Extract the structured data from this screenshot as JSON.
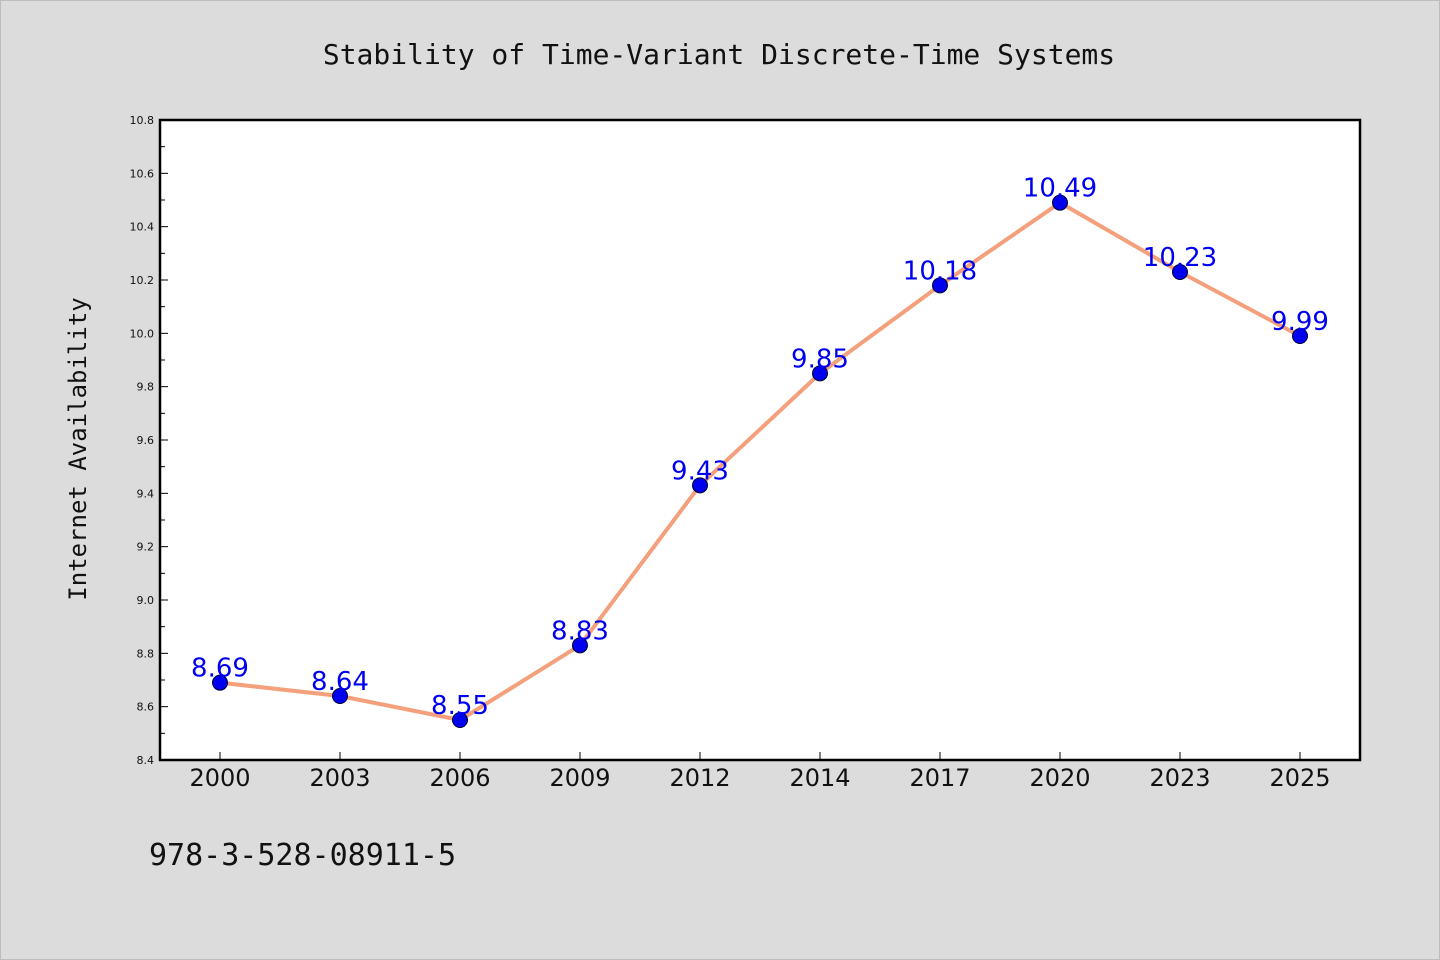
{
  "chart_data": {
    "type": "line",
    "title": "Stability of Time-Variant Discrete-Time Systems",
    "xlabel": "",
    "ylabel": "Internet Availability",
    "categories": [
      "2000",
      "2003",
      "2006",
      "2009",
      "2012",
      "2014",
      "2017",
      "2020",
      "2023",
      "2025"
    ],
    "series": [
      {
        "values": [
          8.69,
          8.64,
          8.55,
          8.83,
          9.43,
          9.85,
          10.18,
          10.49,
          10.23,
          9.99
        ],
        "line_color": "#f4a07c",
        "marker_color": "#0000ee",
        "label_color": "#0000ee"
      }
    ],
    "data_labels": [
      "8.69",
      "8.64",
      "8.55",
      "8.83",
      "9.43",
      "9.85",
      "10.18",
      "10.49",
      "10.23",
      "9.99"
    ],
    "ylim": [
      8.4,
      10.8
    ],
    "yticks": [
      "8.4",
      "8.6",
      "8.8",
      "9.0",
      "9.2",
      "9.4",
      "9.6",
      "9.8",
      "10.0",
      "10.2",
      "10.4",
      "10.6",
      "10.8"
    ],
    "grid": false,
    "legend": "none"
  },
  "footer": {
    "isbn": "978-3-528-08911-5"
  }
}
